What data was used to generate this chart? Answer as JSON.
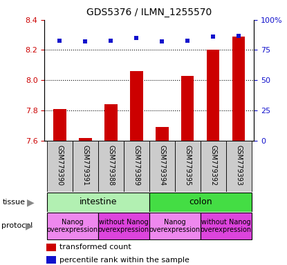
{
  "title": "GDS5376 / ILMN_1255570",
  "samples": [
    "GSM779390",
    "GSM779391",
    "GSM779388",
    "GSM779389",
    "GSM779394",
    "GSM779395",
    "GSM779392",
    "GSM779393"
  ],
  "bar_values": [
    7.81,
    7.615,
    7.84,
    8.06,
    7.69,
    8.03,
    8.2,
    8.29
  ],
  "percentile_values": [
    83,
    82,
    83,
    85,
    82,
    83,
    86,
    87
  ],
  "ylim": [
    7.6,
    8.4
  ],
  "yticks_left": [
    7.6,
    7.8,
    8.0,
    8.2,
    8.4
  ],
  "yticks_right": [
    0,
    25,
    50,
    75,
    100
  ],
  "ylim_right": [
    0,
    100
  ],
  "bar_color": "#cc0000",
  "dot_color": "#1111cc",
  "tissue_intestine": "intestine",
  "tissue_colon": "colon",
  "tissue_color_light": "#b2f0b2",
  "tissue_color_dark": "#44dd44",
  "protocol_nanog": "Nanog\noverexpression",
  "protocol_without": "without Nanog\noverexpression",
  "protocol_color_nanog": "#ee88ee",
  "protocol_color_without": "#dd44dd",
  "label_tissue": "tissue",
  "label_protocol": "protocol",
  "legend_red": "transformed count",
  "legend_blue": "percentile rank within the sample",
  "ytick_left_color": "#cc0000",
  "ytick_right_color": "#1111cc",
  "bar_bottom": 7.6,
  "sample_bg_color": "#cccccc",
  "grid_dotted_values": [
    7.8,
    8.0,
    8.2
  ],
  "title_fontsize": 10,
  "axis_label_fontsize": 8,
  "sample_fontsize": 7,
  "tissue_fontsize": 9,
  "protocol_fontsize": 7,
  "legend_fontsize": 8
}
